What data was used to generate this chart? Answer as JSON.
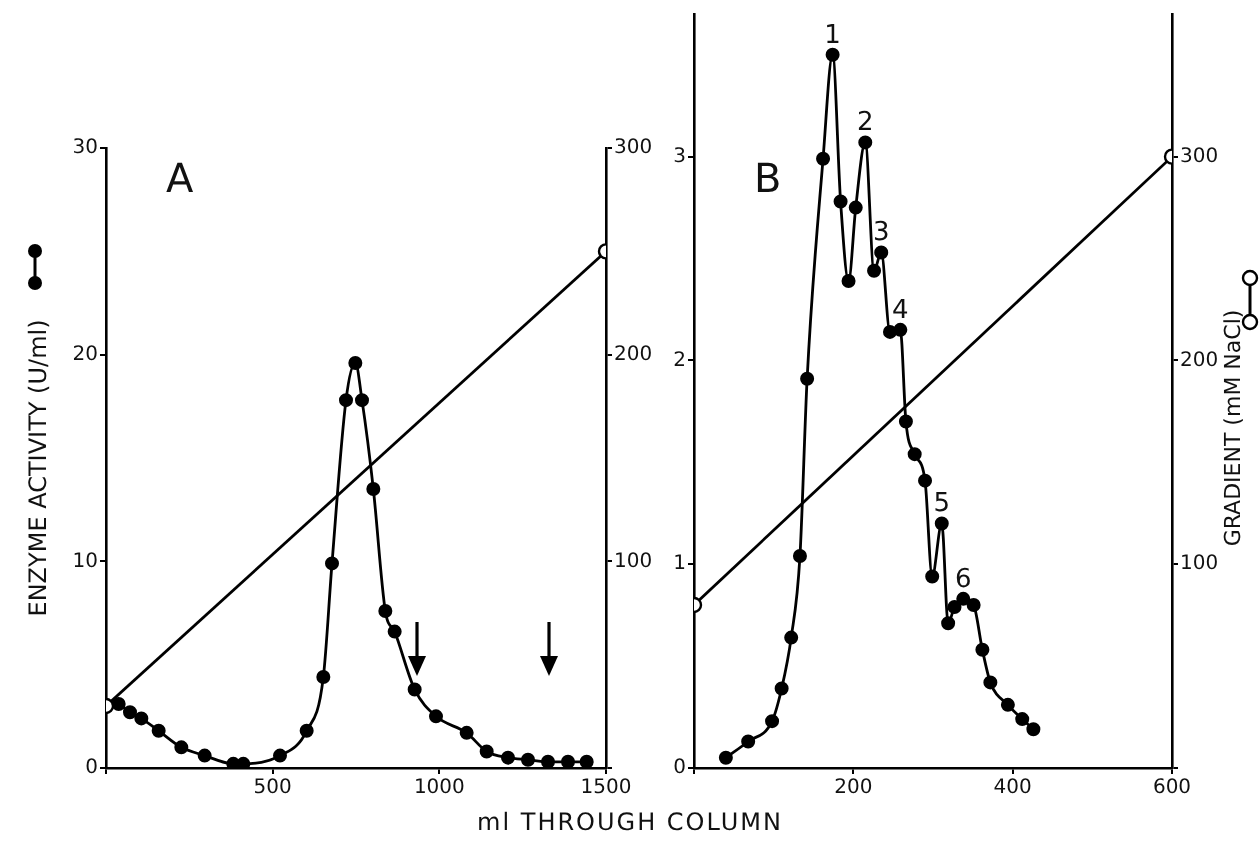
{
  "chart_data": [
    {
      "type": "line",
      "title": "A",
      "xlabel": "ml THROUGH COLUMN",
      "ylabel": "ENZYME ACTIVITY (U/ml)",
      "xlim": [
        0,
        1500
      ],
      "xticks": [
        {
          "value": 0,
          "label": null
        },
        500,
        1000,
        1500
      ],
      "ylim": [
        0,
        30
      ],
      "yticks": [
        0,
        10,
        20,
        30
      ],
      "y2lim": [
        0,
        300
      ],
      "y2ticks": [
        {
          "value": 0,
          "label": null
        },
        100,
        200,
        300
      ],
      "grid": false,
      "legend": false,
      "marker": "circle",
      "series": [
        {
          "color": "#000000",
          "x": [
            38,
            72,
            106,
            158,
            226,
            296,
            382,
            412,
            522,
            602,
            652,
            678,
            720,
            748,
            768,
            802,
            838,
            866,
            926,
            990,
            1082,
            1142,
            1206,
            1266,
            1326,
            1386,
            1442
          ],
          "values": [
            3.1,
            2.7,
            2.4,
            1.8,
            1.0,
            0.6,
            0.2,
            0.2,
            0.6,
            1.8,
            4.4,
            9.9,
            17.8,
            19.6,
            17.8,
            13.5,
            7.6,
            6.6,
            3.8,
            2.5,
            1.7,
            0.8,
            0.5,
            0.4,
            0.3,
            0.3,
            0.3
          ]
        },
        {
          "color": "#000000",
          "axis": "y2",
          "x": [
            0,
            1500
          ],
          "values": [
            30,
            250
          ]
        }
      ]
    },
    {
      "type": "line",
      "title": "B",
      "y2label": "GRADIENT (mM NaCl)",
      "xlim": [
        0,
        600
      ],
      "xticks": [
        {
          "value": 0,
          "label": null
        },
        200,
        400,
        600
      ],
      "ylim": [
        0,
        3.7
      ],
      "yticks": [
        0,
        1,
        2,
        3
      ],
      "y2lim": [
        0,
        370
      ],
      "y2ticks": [
        {
          "value": 0,
          "label": null
        },
        100,
        200,
        300
      ],
      "grid": false,
      "legend": false,
      "marker": "circle",
      "series": [
        {
          "color": "#000000",
          "x": [
            40,
            68,
            98,
            110,
            122,
            133,
            142,
            162,
            174,
            184,
            194,
            203,
            215,
            226,
            235,
            246,
            259,
            266,
            277,
            290,
            299,
            311,
            319,
            327,
            338,
            351,
            362,
            372,
            394,
            412,
            426
          ],
          "values": [
            0.05,
            0.13,
            0.23,
            0.39,
            0.64,
            1.04,
            1.91,
            2.99,
            3.5,
            2.78,
            2.39,
            2.75,
            3.07,
            2.44,
            2.53,
            2.14,
            2.15,
            1.7,
            1.54,
            1.41,
            0.94,
            1.2,
            0.71,
            0.79,
            0.83,
            0.8,
            0.58,
            0.42,
            0.31,
            0.24,
            0.19
          ]
        },
        {
          "color": "#000000",
          "axis": "y2",
          "x": [
            0,
            600
          ],
          "values": [
            80,
            300
          ]
        }
      ],
      "annotations": [
        {
          "text": "1",
          "x": 174,
          "y": 3.5
        },
        {
          "text": "2",
          "x": 215,
          "y": 3.07
        },
        {
          "text": "3",
          "x": 235,
          "y": 2.53
        },
        {
          "text": "4",
          "x": 259,
          "y": 2.15
        },
        {
          "text": "5",
          "x": 311,
          "y": 1.2
        },
        {
          "text": "6",
          "x": 338,
          "y": 0.83
        }
      ]
    }
  ]
}
